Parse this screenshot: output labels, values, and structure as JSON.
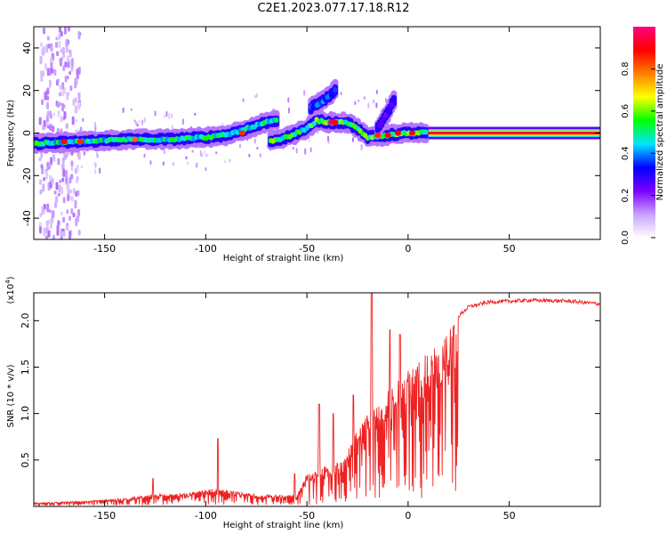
{
  "figure": {
    "title": "C2E1.2023.077.17.18.R12"
  },
  "chart_data": [
    {
      "type": "heatmap",
      "name": "spectrogram",
      "xlabel": "Height of straight line (km)",
      "ylabel": "Frequency (Hz)",
      "xlim": [
        -185,
        95
      ],
      "ylim": [
        -50,
        50
      ],
      "x_ticks": [
        -150,
        -100,
        -50,
        0,
        50
      ],
      "y_ticks": [
        -40,
        -20,
        0,
        20,
        40
      ],
      "colorbar": {
        "label": "Normalized spectral amplitude",
        "range": [
          0.0,
          1.0
        ],
        "ticks": [
          "0.0",
          "0.2",
          "0.4",
          "0.6",
          "0.8"
        ],
        "colors": [
          "#ffffff",
          "#c8a0ff",
          "#7a00ff",
          "#0000ff",
          "#00e5ff",
          "#00ff00",
          "#ffff00",
          "#ff8000",
          "#ff0000",
          "#ff0080"
        ]
      },
      "main_trace": [
        {
          "x": -185,
          "y": -5
        },
        {
          "x": -160,
          "y": -4
        },
        {
          "x": -140,
          "y": -3
        },
        {
          "x": -120,
          "y": -3
        },
        {
          "x": -100,
          "y": -2
        },
        {
          "x": -90,
          "y": -1
        },
        {
          "x": -80,
          "y": 2
        },
        {
          "x": -70,
          "y": 5
        },
        {
          "x": -65,
          "y": 6
        }
      ],
      "second_trace": [
        {
          "x": -68,
          "y": -4
        },
        {
          "x": -60,
          "y": -2
        },
        {
          "x": -50,
          "y": 2
        },
        {
          "x": -45,
          "y": 6
        },
        {
          "x": -40,
          "y": 5
        },
        {
          "x": -30,
          "y": 5
        },
        {
          "x": -25,
          "y": 2
        },
        {
          "x": -20,
          "y": -2
        },
        {
          "x": -10,
          "y": -1
        },
        {
          "x": 0,
          "y": 0
        },
        {
          "x": 10,
          "y": 0
        },
        {
          "x": 95,
          "y": 0
        }
      ],
      "upper_branch": [
        {
          "x": -48,
          "y": 12
        },
        {
          "x": -42,
          "y": 15
        },
        {
          "x": -38,
          "y": 18
        },
        {
          "x": -35,
          "y": 22
        }
      ],
      "right_branch": [
        {
          "x": -15,
          "y": 2
        },
        {
          "x": -10,
          "y": 10
        },
        {
          "x": -7,
          "y": 15
        }
      ],
      "flat_segment": {
        "x_start": 10,
        "x_end": 95,
        "y": 0
      }
    },
    {
      "type": "line",
      "name": "snr",
      "xlabel": "Height of straight line (km)",
      "ylabel": "SNR (10 * v/v)",
      "y_multiplier": "(x10",
      "y_multiplier_exp": "4",
      "y_multiplier_close": ")",
      "xlim": [
        -185,
        95
      ],
      "ylim": [
        0.0,
        2.3
      ],
      "x_ticks": [
        -150,
        -100,
        -50,
        0,
        50
      ],
      "y_ticks": [
        0.5,
        1.0,
        1.5,
        2.0
      ],
      "color": "#ee2222",
      "series": [
        {
          "name": "SNR",
          "envelope": [
            {
              "x": -185,
              "y": 0.04
            },
            {
              "x": -160,
              "y": 0.06
            },
            {
              "x": -140,
              "y": 0.09
            },
            {
              "x": -125,
              "y": 0.14
            },
            {
              "x": -110,
              "y": 0.14
            },
            {
              "x": -95,
              "y": 0.2
            },
            {
              "x": -75,
              "y": 0.13
            },
            {
              "x": -55,
              "y": 0.12
            },
            {
              "x": -50,
              "y": 0.35
            },
            {
              "x": -40,
              "y": 0.45
            },
            {
              "x": -32,
              "y": 0.5
            },
            {
              "x": -25,
              "y": 0.85
            },
            {
              "x": -18,
              "y": 1.05
            },
            {
              "x": -10,
              "y": 1.25
            },
            {
              "x": 0,
              "y": 1.5
            },
            {
              "x": 10,
              "y": 1.65
            },
            {
              "x": 20,
              "y": 1.95
            },
            {
              "x": 30,
              "y": 2.15
            },
            {
              "x": 40,
              "y": 2.2
            },
            {
              "x": 60,
              "y": 2.22
            },
            {
              "x": 80,
              "y": 2.21
            },
            {
              "x": 95,
              "y": 2.18
            }
          ],
          "spikes": [
            {
              "x": -126,
              "y": 0.3
            },
            {
              "x": -94,
              "y": 0.73
            },
            {
              "x": -56,
              "y": 0.35
            },
            {
              "x": -44,
              "y": 1.1
            },
            {
              "x": -37,
              "y": 1.0
            },
            {
              "x": -27,
              "y": 1.2
            },
            {
              "x": -18,
              "y": 2.3
            },
            {
              "x": -9,
              "y": 1.9
            },
            {
              "x": -4,
              "y": 1.85
            }
          ]
        }
      ]
    }
  ]
}
